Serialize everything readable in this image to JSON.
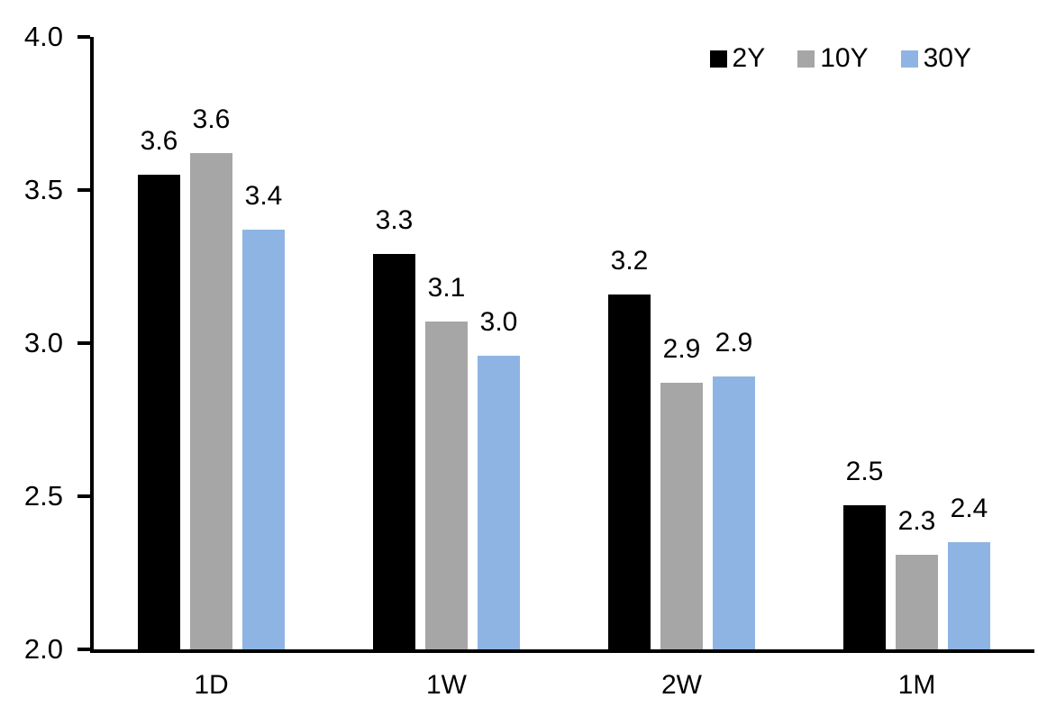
{
  "chart_data": {
    "type": "bar",
    "title": "",
    "xlabel": "",
    "ylabel": "",
    "categories": [
      "1D",
      "1W",
      "2W",
      "1M"
    ],
    "series": [
      {
        "name": "2Y",
        "color": "#000000",
        "values": [
          3.55,
          3.29,
          3.16,
          2.47
        ],
        "labels": [
          "3.6",
          "3.3",
          "3.2",
          "2.5"
        ]
      },
      {
        "name": "10Y",
        "color": "#A6A6A6",
        "values": [
          3.62,
          3.07,
          2.87,
          2.31
        ],
        "labels": [
          "3.6",
          "3.1",
          "2.9",
          "2.3"
        ]
      },
      {
        "name": "30Y",
        "color": "#8EB4E3",
        "values": [
          3.37,
          2.96,
          2.89,
          2.35
        ],
        "labels": [
          "3.4",
          "3.0",
          "2.9",
          "2.4"
        ]
      }
    ],
    "y_axis": {
      "min": 2.0,
      "max": 4.0,
      "tick_step": 0.5,
      "tick_labels": [
        "4.0",
        "3.5",
        "3.0",
        "2.5",
        "2.0"
      ]
    },
    "legend": {
      "position": "top-right",
      "entries": [
        "2Y",
        "10Y",
        "30Y"
      ]
    },
    "grid": false,
    "axis_color": "#000000",
    "background": "#FFFFFF"
  }
}
